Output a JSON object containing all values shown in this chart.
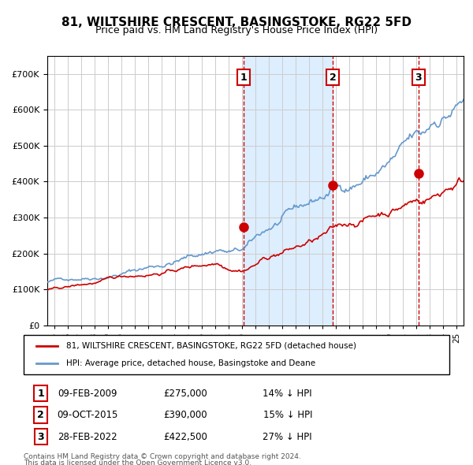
{
  "title": "81, WILTSHIRE CRESCENT, BASINGSTOKE, RG22 5FD",
  "subtitle": "Price paid vs. HM Land Registry's House Price Index (HPI)",
  "legend_line1": "81, WILTSHIRE CRESCENT, BASINGSTOKE, RG22 5FD (detached house)",
  "legend_line2": "HPI: Average price, detached house, Basingstoke and Deane",
  "footer_line1": "Contains HM Land Registry data © Crown copyright and database right 2024.",
  "footer_line2": "This data is licensed under the Open Government Licence v3.0.",
  "transactions": [
    {
      "num": 1,
      "date": "09-FEB-2009",
      "price": "£275,000",
      "pct": "14%",
      "dir": "↓",
      "label": "HPI"
    },
    {
      "num": 2,
      "date": "09-OCT-2015",
      "price": "£390,000",
      "pct": "15%",
      "dir": "↓",
      "label": "HPI"
    },
    {
      "num": 3,
      "date": "28-FEB-2022",
      "price": "£422,500",
      "pct": "27%",
      "dir": "↓",
      "label": "HPI"
    }
  ],
  "vline_dates": [
    2009.1,
    2015.75,
    2022.15
  ],
  "shade_start": 2009.1,
  "shade_end": 2015.75,
  "red_color": "#cc0000",
  "blue_color": "#6699cc",
  "shade_color": "#ddeeff",
  "grid_color": "#cccccc",
  "background_color": "#ffffff",
  "ylim": [
    0,
    750000
  ],
  "xlim_start": 1994.5,
  "xlim_end": 2025.5
}
